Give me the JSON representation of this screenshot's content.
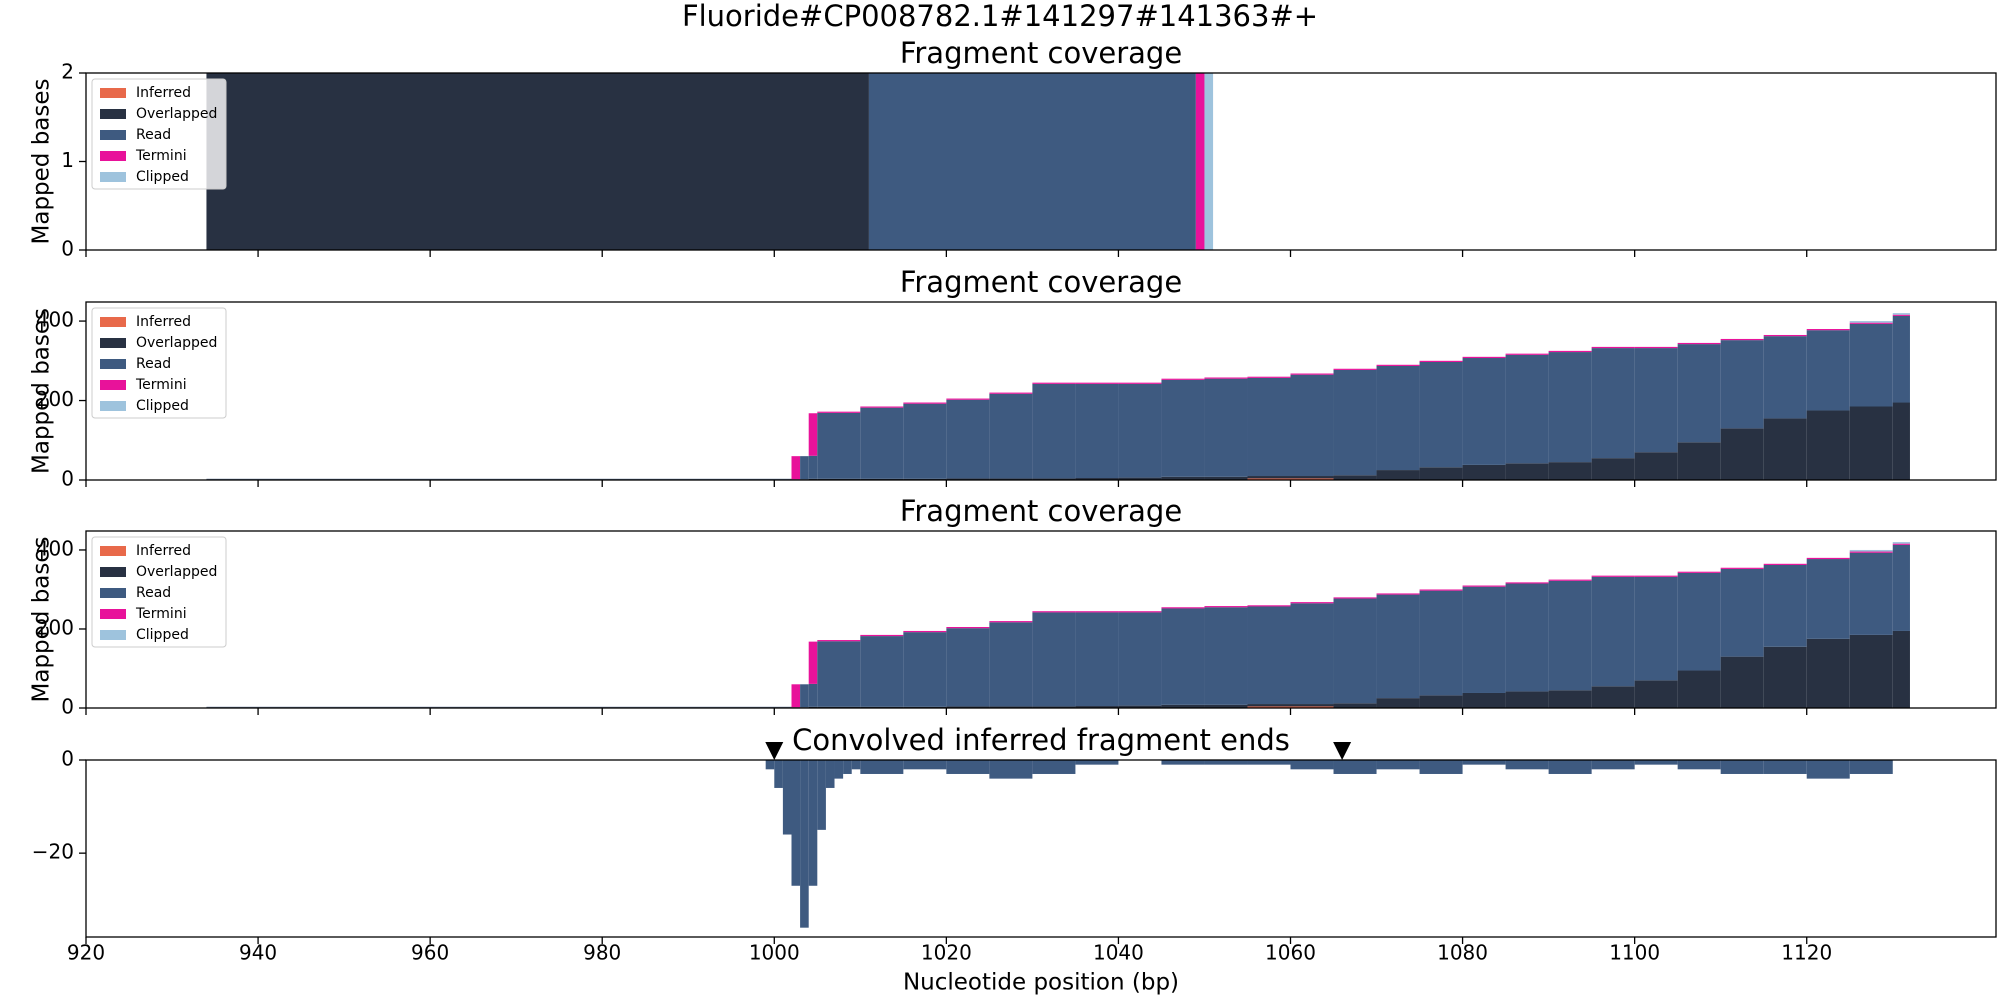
{
  "title": "Fluoride#CP008782.1#141297#141363#+",
  "chart_data": [
    {
      "type": "stacked_histogram",
      "title": "Fragment coverage",
      "ylabel": "Mapped bases",
      "legend": "upper left",
      "xlim": [
        920,
        1142
      ],
      "xticks": [
        920,
        940,
        960,
        980,
        1000,
        1020,
        1040,
        1060,
        1080,
        1100,
        1120
      ],
      "ylim": [
        0,
        2
      ],
      "yticks": [
        0,
        1,
        2
      ],
      "bins": [
        934,
        1011,
        1049,
        1050,
        1051
      ],
      "series": [
        {
          "name": "Inferred",
          "color": "#e8694a",
          "values": [
            0,
            0,
            0,
            0
          ]
        },
        {
          "name": "Overlapped",
          "color": "#283142",
          "values": [
            2,
            0,
            0,
            0
          ]
        },
        {
          "name": "Read",
          "color": "#3e5a80",
          "values": [
            0,
            2,
            0,
            0
          ]
        },
        {
          "name": "Termini",
          "color": "#e8129a",
          "values": [
            0,
            0,
            2,
            0
          ]
        },
        {
          "name": "Clipped",
          "color": "#9ec3dd",
          "values": [
            0,
            0,
            0,
            2
          ]
        }
      ]
    },
    {
      "type": "stacked_histogram",
      "title": "Fragment coverage",
      "ylabel": "Mapped bases",
      "legend": "upper left",
      "xlim": [
        920,
        1142
      ],
      "xticks": [
        920,
        940,
        960,
        980,
        1000,
        1020,
        1040,
        1060,
        1080,
        1100,
        1120
      ],
      "ylim": [
        0,
        448
      ],
      "yticks": [
        0,
        200,
        400
      ],
      "bins": [
        934,
        1002,
        1003,
        1004,
        1005,
        1010,
        1015,
        1020,
        1025,
        1030,
        1035,
        1040,
        1045,
        1050,
        1055,
        1060,
        1065,
        1070,
        1075,
        1080,
        1085,
        1090,
        1095,
        1100,
        1105,
        1110,
        1115,
        1120,
        1125,
        1130,
        1132
      ],
      "series": [
        {
          "name": "Inferred",
          "color": "#e8694a",
          "values": [
            0,
            0,
            0,
            0,
            0,
            0,
            0,
            0,
            0,
            0,
            0,
            0,
            0,
            0,
            4,
            4,
            0,
            0,
            0,
            0,
            0,
            0,
            0,
            0,
            0,
            0,
            0,
            0,
            0,
            0
          ]
        },
        {
          "name": "Overlapped",
          "color": "#283142",
          "values": [
            2,
            2,
            2,
            3,
            3,
            3,
            3,
            4,
            4,
            4,
            5,
            6,
            8,
            8,
            6,
            6,
            12,
            25,
            32,
            38,
            42,
            45,
            55,
            70,
            95,
            130,
            155,
            175,
            185,
            195
          ]
        },
        {
          "name": "Read",
          "color": "#3e5a80",
          "values": [
            1,
            0,
            58,
            58,
            166,
            179,
            189,
            198,
            213,
            238,
            237,
            236,
            244,
            247,
            247,
            255,
            265,
            262,
            265,
            269,
            273,
            277,
            277,
            262,
            247,
            222,
            207,
            202,
            208,
            218
          ]
        },
        {
          "name": "Termini",
          "color": "#e8129a",
          "values": [
            0,
            58,
            0,
            107,
            3,
            3,
            3,
            3,
            3,
            3,
            3,
            3,
            3,
            3,
            3,
            3,
            3,
            3,
            3,
            3,
            3,
            3,
            3,
            3,
            3,
            3,
            3,
            3,
            3,
            3
          ]
        },
        {
          "name": "Clipped",
          "color": "#9ec3dd",
          "values": [
            0,
            0,
            0,
            0,
            0,
            0,
            0,
            0,
            0,
            0,
            0,
            0,
            0,
            0,
            0,
            0,
            0,
            0,
            0,
            0,
            0,
            0,
            0,
            0,
            0,
            0,
            0,
            0,
            4,
            4
          ]
        }
      ]
    },
    {
      "type": "stacked_histogram",
      "title": "Fragment coverage",
      "ylabel": "Mapped bases",
      "legend": "upper left",
      "xlim": [
        920,
        1142
      ],
      "xticks": [
        920,
        940,
        960,
        980,
        1000,
        1020,
        1040,
        1060,
        1080,
        1100,
        1120
      ],
      "ylim": [
        0,
        448
      ],
      "yticks": [
        0,
        200,
        400
      ],
      "bins": [
        934,
        1002,
        1003,
        1004,
        1005,
        1010,
        1015,
        1020,
        1025,
        1030,
        1035,
        1040,
        1045,
        1050,
        1055,
        1060,
        1065,
        1070,
        1075,
        1080,
        1085,
        1090,
        1095,
        1100,
        1105,
        1110,
        1115,
        1120,
        1125,
        1130,
        1132
      ],
      "series": [
        {
          "name": "Inferred",
          "color": "#e8694a",
          "values": [
            0,
            0,
            0,
            0,
            0,
            0,
            0,
            0,
            0,
            0,
            0,
            0,
            0,
            0,
            4,
            4,
            0,
            0,
            0,
            0,
            0,
            0,
            0,
            0,
            0,
            0,
            0,
            0,
            0,
            0
          ]
        },
        {
          "name": "Overlapped",
          "color": "#283142",
          "values": [
            2,
            2,
            2,
            3,
            3,
            3,
            3,
            4,
            4,
            4,
            5,
            6,
            8,
            8,
            6,
            6,
            12,
            25,
            32,
            38,
            42,
            45,
            55,
            70,
            95,
            130,
            155,
            175,
            185,
            195
          ]
        },
        {
          "name": "Read",
          "color": "#3e5a80",
          "values": [
            1,
            0,
            58,
            58,
            166,
            179,
            189,
            198,
            213,
            238,
            237,
            236,
            244,
            247,
            247,
            255,
            265,
            262,
            265,
            269,
            273,
            277,
            277,
            262,
            247,
            222,
            207,
            202,
            208,
            218
          ]
        },
        {
          "name": "Termini",
          "color": "#e8129a",
          "values": [
            0,
            58,
            0,
            107,
            3,
            3,
            3,
            3,
            3,
            3,
            3,
            3,
            3,
            3,
            3,
            3,
            3,
            3,
            3,
            3,
            3,
            3,
            3,
            3,
            3,
            3,
            3,
            3,
            3,
            3
          ]
        },
        {
          "name": "Clipped",
          "color": "#9ec3dd",
          "values": [
            0,
            0,
            0,
            0,
            0,
            0,
            0,
            0,
            0,
            0,
            0,
            0,
            0,
            0,
            0,
            0,
            0,
            0,
            0,
            0,
            0,
            0,
            0,
            0,
            0,
            0,
            0,
            0,
            4,
            4
          ]
        }
      ]
    },
    {
      "type": "histogram",
      "title": "Convolved inferred fragment ends",
      "xlabel": "Nucleotide position (bp)",
      "xlim": [
        920,
        1142
      ],
      "xticks": [
        920,
        940,
        960,
        980,
        1000,
        1020,
        1040,
        1060,
        1080,
        1100,
        1120
      ],
      "ylim": [
        -38,
        0
      ],
      "yticks": [
        {
          "value": -20,
          "label": "−20"
        },
        0
      ],
      "color": "#3e5a80",
      "bins": [
        999,
        1000,
        1001,
        1002,
        1003,
        1004,
        1005,
        1006,
        1007,
        1008,
        1009,
        1010,
        1015,
        1020,
        1025,
        1030,
        1035,
        1040,
        1045,
        1050,
        1055,
        1060,
        1065,
        1070,
        1075,
        1080,
        1085,
        1090,
        1095,
        1100,
        1105,
        1110,
        1115,
        1120,
        1125,
        1130
      ],
      "values": [
        -2,
        -6,
        -16,
        -27,
        -36,
        -27,
        -15,
        -6,
        -4,
        -3,
        -2,
        -3,
        -2,
        -3,
        -4,
        -3,
        -1,
        0,
        -1,
        -1,
        -1,
        -2,
        -3,
        -2,
        -3,
        -1,
        -2,
        -3,
        -2,
        -1,
        -2,
        -3,
        -3,
        -4,
        -3
      ],
      "markers_x": [
        1000,
        1066
      ]
    }
  ]
}
